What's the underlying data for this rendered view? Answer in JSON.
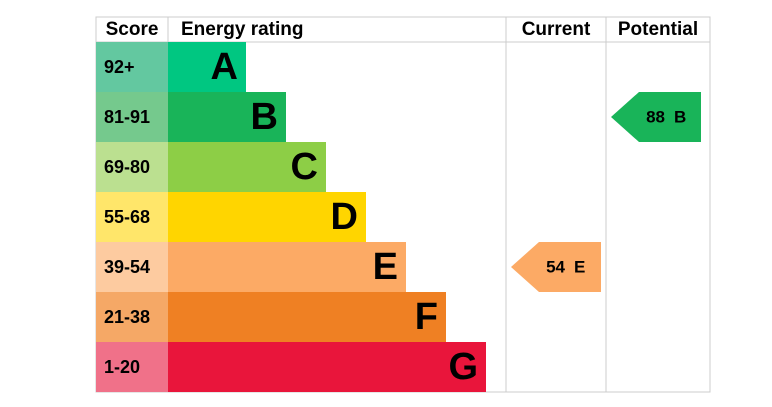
{
  "header": {
    "score": "Score",
    "rating": "Energy rating",
    "current": "Current",
    "potential": "Potential"
  },
  "rows": [
    {
      "score": "92+",
      "letter": "A",
      "color": "#00c781",
      "score_color": "#63c8a0"
    },
    {
      "score": "81-91",
      "letter": "B",
      "color": "#19b459",
      "score_color": "#75c98d"
    },
    {
      "score": "69-80",
      "letter": "C",
      "color": "#8dce46",
      "score_color": "#bbe090"
    },
    {
      "score": "55-68",
      "letter": "D",
      "color": "#ffd500",
      "score_color": "#ffe66a"
    },
    {
      "score": "39-54",
      "letter": "E",
      "color": "#fcaa65",
      "score_color": "#fdcba0"
    },
    {
      "score": "21-38",
      "letter": "F",
      "color": "#ef8023",
      "score_color": "#f5a866"
    },
    {
      "score": "1-20",
      "letter": "G",
      "color": "#e9153b",
      "score_color": "#f07189"
    }
  ],
  "current": {
    "value": 54,
    "letter": "E"
  },
  "potential": {
    "value": 88,
    "letter": "B"
  }
}
